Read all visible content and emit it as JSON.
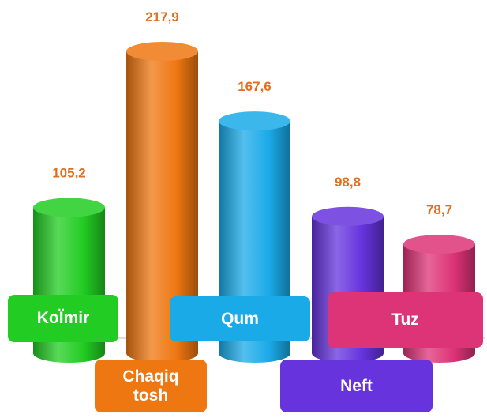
{
  "chart_data": {
    "type": "bar",
    "categories": [
      "KoÏmir",
      "Chaqiq tosh",
      "Qum",
      "Neft",
      "Tuz"
    ],
    "values": [
      105.2,
      217.9,
      167.6,
      98.8,
      78.7
    ],
    "value_labels": [
      "105,2",
      "217,9",
      "167,6",
      "98,8",
      "78,7"
    ],
    "colors": [
      "#22cc22",
      "#ee7711",
      "#1aaae8",
      "#6633dd",
      "#dd3377"
    ],
    "label_color": "#e07020"
  }
}
